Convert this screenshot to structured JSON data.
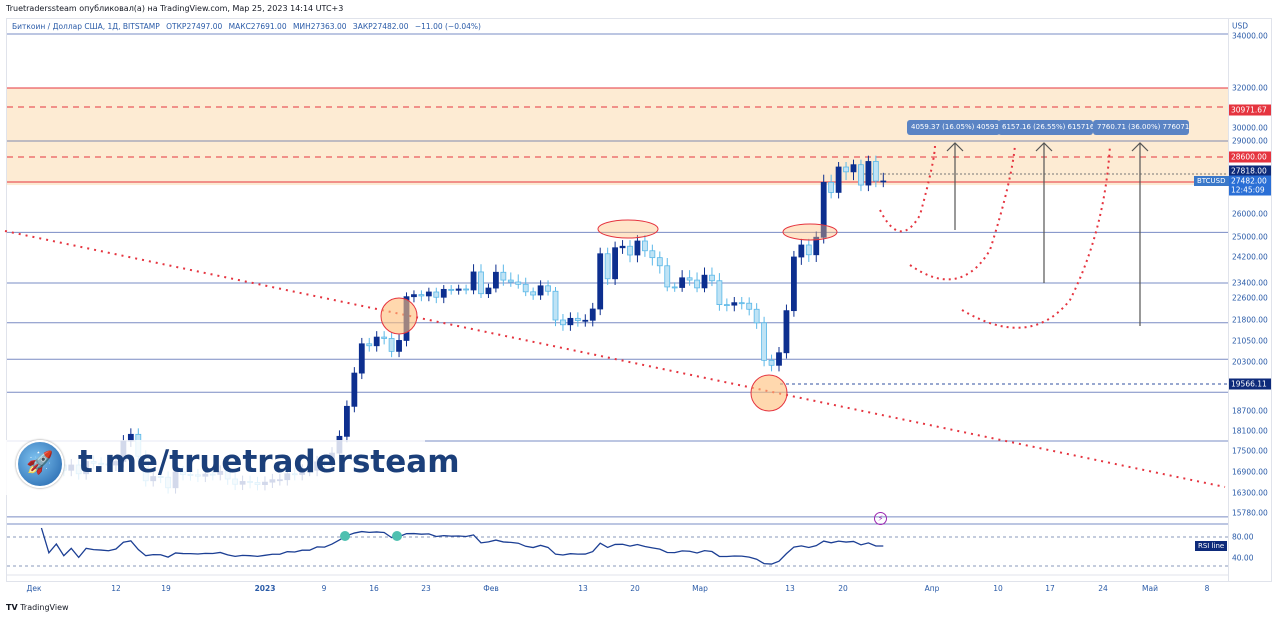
{
  "header": {
    "published": "Truetraderssteam опубликовал(а) на TradingView.com, Мар 25, 2023 14:14 UTC+3"
  },
  "legend": {
    "symbol": "Биткоин / Доллар США, 1Д, BITSTAMP",
    "open": "ОТКР27497.00",
    "high": "МАКС27691.00",
    "low": "МИН27363.00",
    "close": "ЗАКР27482.00",
    "change": "−11.00 (−0.04%)"
  },
  "price_axis": {
    "currency": "USD",
    "ticks": [
      "34000.00",
      "32000.00",
      "30000.00",
      "29000.00",
      "26000.00",
      "25000.00",
      "24200.00",
      "23400.00",
      "22600.00",
      "21800.00",
      "21050.00",
      "20300.00",
      "18700.00",
      "18100.00",
      "17500.00",
      "16900.00",
      "16300.00",
      "15780.00"
    ],
    "badges": {
      "level_high": "30971.67",
      "level_mid": "28600.00",
      "high_price": "27818.00",
      "last_price": "27482.00",
      "countdown": "12:45:09",
      "level_low": "19566.11"
    },
    "rsi_ticks": [
      "80.00",
      "40.00"
    ]
  },
  "symbol_label": "BTCUSD",
  "rsi_label": "RSI line",
  "measure_labels": [
    "4059.37 (16.05%) 405937",
    "6157.16 (26.55%) 615716",
    "7760.71 (36.00%) 776071"
  ],
  "time_axis": [
    "Дек",
    "12",
    "19",
    "2023",
    "9",
    "16",
    "23",
    "Фев",
    "13",
    "20",
    "Мар",
    "13",
    "20",
    "Апр",
    "10",
    "17",
    "24",
    "Май",
    "8"
  ],
  "watermark": "t.me/truetradersteam",
  "footer": "TradingView",
  "colors": {
    "up": "#0d2f8f",
    "down": "#5bb8e8",
    "zone": "#fdebd3",
    "red": "#e5343f",
    "level": "#7a8cc4"
  },
  "chart_data": {
    "type": "candlestick",
    "title": "BTCUSD 1D BITSTAMP",
    "start_date": "2022-12-01",
    "closes": [
      17000,
      17100,
      17000,
      17100,
      16950,
      17100,
      16850,
      17200,
      17150,
      17130,
      17100,
      17200,
      17800,
      18000,
      17350,
      16650,
      16770,
      16750,
      16450,
      16900,
      16830,
      16820,
      16780,
      16840,
      16830,
      16920,
      16700,
      16550,
      16630,
      16600,
      16540,
      16610,
      16680,
      16680,
      16850,
      16830,
      16950,
      16950,
      17190,
      17180,
      17440,
      17940,
      18850,
      19930,
      20950,
      20880,
      21190,
      21140,
      20680,
      21070,
      22670,
      22780,
      22710,
      22920,
      22640,
      23060,
      23010,
      23080,
      23030,
      23740,
      22830,
      23130,
      23730,
      23490,
      23430,
      23330,
      22930,
      22760,
      23250,
      22960,
      21800,
      21630,
      21860,
      21780,
      21790,
      22200,
      24330,
      23530,
      24570,
      24630,
      24280,
      24840,
      24450,
      24180,
      23930,
      23190,
      23160,
      23560,
      23490,
      23140,
      23640,
      23470,
      22360,
      22340,
      22430,
      22410,
      22190,
      21700,
      20360,
      20190,
      20630,
      22140,
      24200,
      24680,
      24290,
      24990,
      27420,
      26970,
      28040,
      27790,
      28170,
      27300,
      28350,
      27480,
      27482
    ],
    "levels": [
      34800,
      25200,
      23400,
      21700,
      20400,
      19300,
      17800,
      15600
    ],
    "zone": [
      27300,
      32000
    ],
    "rsi_range": [
      0,
      100
    ]
  }
}
